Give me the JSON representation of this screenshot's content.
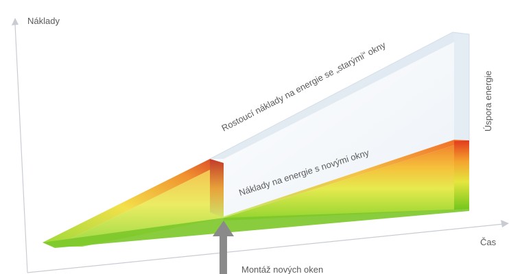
{
  "axes": {
    "y_label": "Náklady",
    "x_label": "Čas"
  },
  "labels": {
    "old_windows": "Rostoucí náklady na energie se „starými“ okny",
    "new_windows": "Náklady na energie s novými okny",
    "savings": "Úspora energie",
    "installation": "Montáž nových oken"
  },
  "colors": {
    "axis": "#c8ccd2",
    "savings_panel": "#eef3f8",
    "savings_panel_edge": "#dbe4ee",
    "cost_low": "#7ed321",
    "cost_mid": "#f2e13a",
    "cost_high": "#e8501f",
    "arrow": "#8a8a8a",
    "text": "#5a5a5a"
  }
}
